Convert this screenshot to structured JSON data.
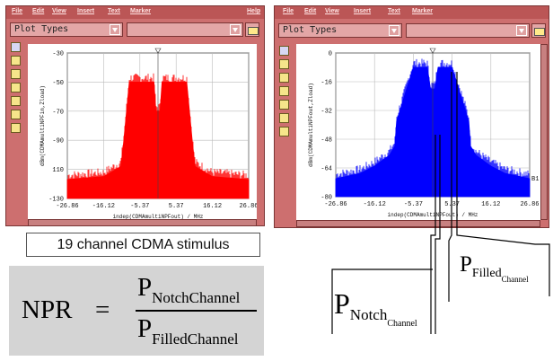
{
  "left_window": {
    "menu": [
      "File",
      "Edit",
      "View",
      "Insert",
      "Text",
      "Marker",
      "Help"
    ],
    "plot_types_label": "Plot Types",
    "y_ticks": [
      "-30",
      "-50",
      "-70",
      "-90",
      "110",
      "-130"
    ],
    "x_ticks": [
      "-26.86",
      "-16.12",
      "-5.37",
      "5.37",
      "16.12",
      "26.86"
    ],
    "y_label": "dBm(CDMAmultiNPFin,Zload)",
    "x_label": "indep(CDMAmultiNPFout) / MHz",
    "trace_color": "#ff0000"
  },
  "right_window": {
    "menu": [
      "File",
      "Edit",
      "View",
      "Insert",
      "Text",
      "Marker",
      "Help"
    ],
    "plot_types_label": "Plot Types",
    "y_ticks": [
      "0",
      "-16",
      "-32",
      "-48",
      "-64",
      "-80"
    ],
    "x_ticks": [
      "-26.86",
      "-16.12",
      "-5.37",
      "5.37",
      "16.12",
      "26.86"
    ],
    "y_label": "dBm(CDMAmultiNPFout,Zload)",
    "x_label": "indep(CDMAmultiNPFout) / MHz",
    "marker_label": "B1",
    "trace_color": "#0000ff"
  },
  "caption": "19 channel CDMA stimulus",
  "formula": {
    "lhs": "NPR",
    "eq": "=",
    "num_main": "P",
    "num_sub": "NotchChannel",
    "den_main": "P",
    "den_sub": "FilledChannel"
  },
  "annotations": {
    "filled_main": "P",
    "filled_sub": "Filled",
    "filled_subsub": "Channel",
    "notch_main": "P",
    "notch_sub": "Notch",
    "notch_subsub": "Channel"
  },
  "chart_data": [
    {
      "type": "area",
      "title": "",
      "xlabel": "indep(CDMAmultiNPFout) / MHz",
      "ylabel": "dBm(CDMAmultiNPFin,Zload)",
      "xlim": [
        -26.86,
        26.86
      ],
      "ylim": [
        -130,
        -30
      ],
      "series": [
        {
          "x": [
            -26.86,
            -16.12,
            -11,
            -10.2,
            -8.5,
            -3,
            -1.2,
            -0.6,
            0.6,
            1.2,
            3,
            8.5,
            10.2,
            11,
            16.12,
            26.86
          ],
          "values": [
            -117,
            -115,
            -108,
            -92,
            -50,
            -50,
            -50,
            -70,
            -70,
            -50,
            -50,
            -50,
            -92,
            -108,
            -115,
            -117
          ]
        }
      ]
    },
    {
      "type": "area",
      "title": "",
      "xlabel": "indep(CDMAmultiNPFout) / MHz",
      "ylabel": "dBm(CDMAmultiNPFout,Zload)",
      "xlim": [
        -26.86,
        26.86
      ],
      "ylim": [
        -80,
        0
      ],
      "series": [
        {
          "x": [
            -26.86,
            -20,
            -16.12,
            -12,
            -10.5,
            -10,
            -5.37,
            -1.5,
            -0.6,
            0.6,
            1.5,
            5.37,
            10,
            10.5,
            12,
            16.12,
            20,
            26.86
          ],
          "values": [
            -70,
            -67,
            -63,
            -57,
            -52,
            -38,
            -8,
            -8,
            -20,
            -20,
            -8,
            -8,
            -38,
            -52,
            -57,
            -63,
            -67,
            -70
          ]
        }
      ]
    }
  ]
}
